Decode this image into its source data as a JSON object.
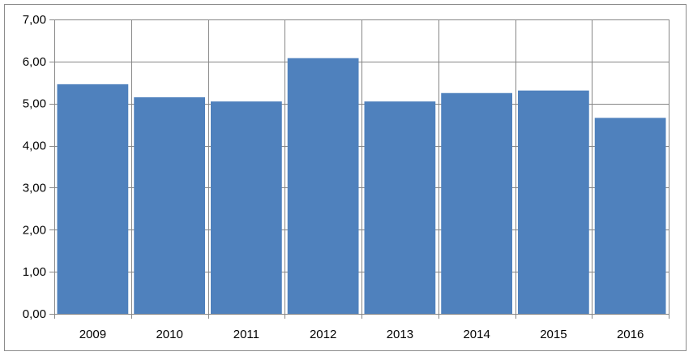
{
  "chart_data": {
    "type": "bar",
    "title": "",
    "xlabel": "",
    "ylabel": "",
    "categories": [
      "2009",
      "2010",
      "2011",
      "2012",
      "2013",
      "2014",
      "2015",
      "2016"
    ],
    "values": [
      5.46,
      5.15,
      5.05,
      6.08,
      5.05,
      5.25,
      5.31,
      4.66
    ],
    "ylim": [
      0,
      7
    ],
    "yticks": [
      0,
      1,
      2,
      3,
      4,
      5,
      6,
      7
    ],
    "ytick_labels": [
      "0,00",
      "1,00",
      "2,00",
      "3,00",
      "4,00",
      "5,00",
      "6,00",
      "7,00"
    ],
    "grid": true,
    "legend": "none",
    "colors": {
      "bar": "#4f81bd",
      "grid": "#868686",
      "axis": "#868686"
    }
  }
}
